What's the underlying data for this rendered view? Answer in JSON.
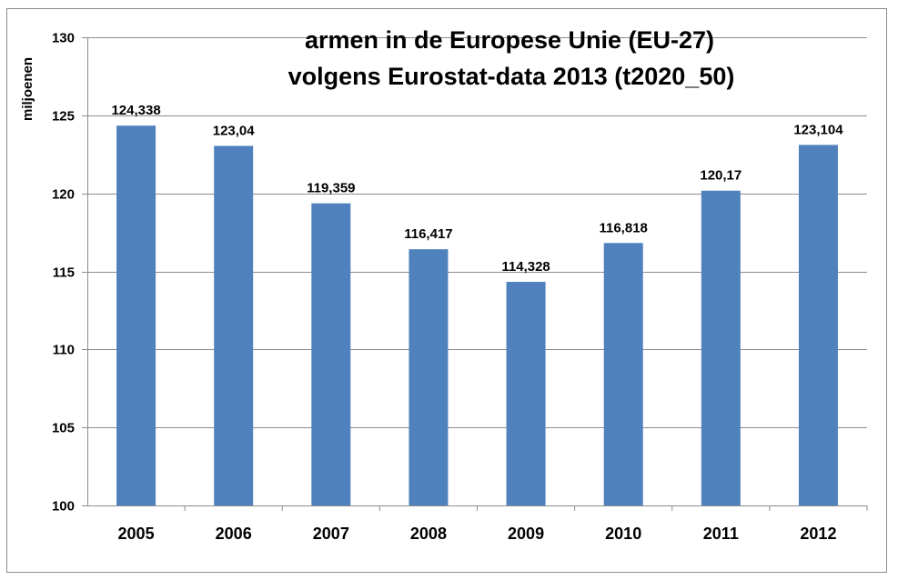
{
  "chart_data": {
    "type": "bar",
    "title": [
      "armen in de Europese Unie (EU-27)",
      "volgens Eurostat-data 2013 (t2020_50)"
    ],
    "xlabel": "",
    "ylabel": "miljoenen",
    "categories": [
      "2005",
      "2006",
      "2007",
      "2008",
      "2009",
      "2010",
      "2011",
      "2012"
    ],
    "values": [
      124.338,
      123.04,
      119.359,
      116.417,
      114.328,
      116.818,
      120.17,
      123.104
    ],
    "data_labels": [
      "124,338",
      "123,04",
      "119,359",
      "116,417",
      "114,328",
      "116,818",
      "120,17",
      "123,104"
    ],
    "ylim": [
      100,
      130
    ],
    "yticks": [
      100,
      105,
      110,
      115,
      120,
      125,
      130
    ],
    "grid": true,
    "legend": "none",
    "bar_color": "#4f81bd"
  }
}
